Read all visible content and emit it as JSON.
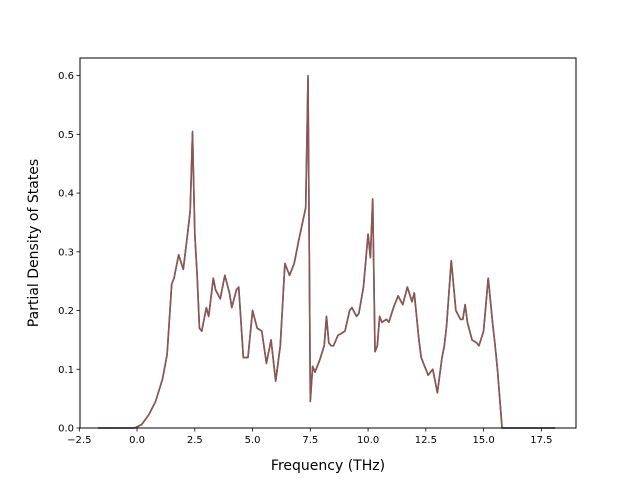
{
  "chart_data": {
    "type": "line",
    "title": "",
    "xlabel": "Frequency (THz)",
    "ylabel": "Partial Density of States",
    "xlim": [
      -2.47,
      19.0
    ],
    "ylim": [
      0.0,
      0.63
    ],
    "grid": false,
    "legend": "none",
    "xticks": [
      -2.5,
      0.0,
      2.5,
      5.0,
      7.5,
      10.0,
      12.5,
      15.0,
      17.5
    ],
    "xtick_labels": [
      "−2.5",
      "0.0",
      "2.5",
      "5.0",
      "7.5",
      "10.0",
      "12.5",
      "15.0",
      "17.5"
    ],
    "yticks": [
      0.0,
      0.1,
      0.2,
      0.3,
      0.4,
      0.5,
      0.6
    ],
    "ytick_labels": [
      "0.0",
      "0.1",
      "0.2",
      "0.3",
      "0.4",
      "0.5",
      "0.6"
    ],
    "series": [
      {
        "color": "#4c5fb4",
        "x": [
          -1.7,
          -0.1,
          0.2,
          0.5,
          0.8,
          1.1,
          1.3,
          1.5,
          1.6,
          1.8,
          2.0,
          2.2,
          2.3,
          2.4,
          2.5,
          2.6,
          2.7,
          2.8,
          3.0,
          3.1,
          3.3,
          3.4,
          3.6,
          3.8,
          4.0,
          4.1,
          4.3,
          4.4,
          4.5,
          4.6,
          4.8,
          5.0,
          5.2,
          5.4,
          5.6,
          5.8,
          6.0,
          6.2,
          6.4,
          6.6,
          6.8,
          7.0,
          7.3,
          7.4,
          7.5,
          7.6,
          7.7,
          7.9,
          8.1,
          8.2,
          8.3,
          8.4,
          8.5,
          8.7,
          8.8,
          9.0,
          9.2,
          9.3,
          9.5,
          9.6,
          9.8,
          10.0,
          10.1,
          10.2,
          10.3,
          10.4,
          10.5,
          10.6,
          10.8,
          10.9,
          11.1,
          11.3,
          11.5,
          11.7,
          11.9,
          12.0,
          12.2,
          12.3,
          12.5,
          12.6,
          12.8,
          13.0,
          13.2,
          13.3,
          13.4,
          13.6,
          13.8,
          14.0,
          14.1,
          14.2,
          14.3,
          14.5,
          14.7,
          14.8,
          15.0,
          15.2,
          15.4,
          15.5,
          15.6,
          15.8,
          15.9,
          16.0,
          16.2,
          16.3,
          16.5,
          17.5,
          18.1
        ],
        "y": [
          0.0,
          0.0,
          0.006,
          0.022,
          0.045,
          0.083,
          0.125,
          0.245,
          0.255,
          0.295,
          0.27,
          0.335,
          0.37,
          0.505,
          0.33,
          0.26,
          0.17,
          0.165,
          0.205,
          0.19,
          0.255,
          0.235,
          0.22,
          0.26,
          0.23,
          0.205,
          0.235,
          0.24,
          0.18,
          0.12,
          0.12,
          0.2,
          0.17,
          0.165,
          0.11,
          0.15,
          0.08,
          0.14,
          0.28,
          0.26,
          0.28,
          0.32,
          0.375,
          0.6,
          0.048,
          0.105,
          0.095,
          0.115,
          0.14,
          0.19,
          0.145,
          0.14,
          0.14,
          0.158,
          0.16,
          0.165,
          0.2,
          0.205,
          0.19,
          0.195,
          0.24,
          0.33,
          0.29,
          0.39,
          0.13,
          0.14,
          0.19,
          0.18,
          0.185,
          0.18,
          0.205,
          0.225,
          0.21,
          0.24,
          0.215,
          0.23,
          0.15,
          0.12,
          0.1,
          0.09,
          0.1,
          0.06,
          0.12,
          0.14,
          0.175,
          0.285,
          0.2,
          0.185,
          0.185,
          0.21,
          0.18,
          0.15,
          0.145,
          0.14,
          0.165,
          0.255,
          0.175,
          0.14,
          0.1,
          0.0,
          0.0,
          0.0,
          0.0,
          0.0,
          0.0,
          0.0,
          0.0
        ]
      },
      {
        "color": "#8c564b",
        "x": [
          -1.7,
          -0.1,
          0.2,
          0.5,
          0.8,
          1.1,
          1.3,
          1.5,
          1.6,
          1.8,
          2.0,
          2.2,
          2.3,
          2.4,
          2.5,
          2.6,
          2.7,
          2.8,
          3.0,
          3.1,
          3.3,
          3.4,
          3.6,
          3.8,
          4.0,
          4.1,
          4.3,
          4.4,
          4.5,
          4.6,
          4.8,
          5.0,
          5.2,
          5.4,
          5.6,
          5.8,
          6.0,
          6.2,
          6.4,
          6.6,
          6.8,
          7.0,
          7.3,
          7.4,
          7.5,
          7.6,
          7.7,
          7.9,
          8.1,
          8.2,
          8.3,
          8.4,
          8.5,
          8.7,
          8.8,
          9.0,
          9.2,
          9.3,
          9.5,
          9.6,
          9.8,
          10.0,
          10.1,
          10.2,
          10.3,
          10.4,
          10.5,
          10.6,
          10.8,
          10.9,
          11.1,
          11.3,
          11.5,
          11.7,
          11.9,
          12.0,
          12.2,
          12.3,
          12.5,
          12.6,
          12.8,
          13.0,
          13.2,
          13.3,
          13.4,
          13.6,
          13.8,
          14.0,
          14.1,
          14.2,
          14.3,
          14.5,
          14.7,
          14.8,
          15.0,
          15.2,
          15.4,
          15.5,
          15.6,
          15.8,
          15.9,
          16.0,
          16.2,
          16.3,
          16.5,
          17.5,
          18.1
        ],
        "y": [
          0.0,
          0.0,
          0.006,
          0.022,
          0.045,
          0.083,
          0.125,
          0.245,
          0.255,
          0.295,
          0.27,
          0.335,
          0.37,
          0.502,
          0.33,
          0.26,
          0.17,
          0.165,
          0.205,
          0.19,
          0.255,
          0.235,
          0.22,
          0.26,
          0.23,
          0.205,
          0.235,
          0.24,
          0.18,
          0.12,
          0.12,
          0.2,
          0.17,
          0.165,
          0.11,
          0.15,
          0.08,
          0.14,
          0.28,
          0.26,
          0.28,
          0.32,
          0.375,
          0.596,
          0.045,
          0.105,
          0.095,
          0.115,
          0.14,
          0.19,
          0.145,
          0.14,
          0.14,
          0.158,
          0.16,
          0.165,
          0.2,
          0.205,
          0.19,
          0.195,
          0.24,
          0.33,
          0.29,
          0.39,
          0.13,
          0.14,
          0.19,
          0.18,
          0.185,
          0.18,
          0.205,
          0.225,
          0.21,
          0.24,
          0.215,
          0.23,
          0.15,
          0.12,
          0.1,
          0.09,
          0.1,
          0.06,
          0.12,
          0.14,
          0.175,
          0.285,
          0.2,
          0.185,
          0.185,
          0.21,
          0.18,
          0.15,
          0.145,
          0.14,
          0.165,
          0.255,
          0.175,
          0.14,
          0.1,
          0.0,
          0.0,
          0.0,
          0.0,
          0.0,
          0.0,
          0.0,
          0.0
        ]
      }
    ]
  }
}
